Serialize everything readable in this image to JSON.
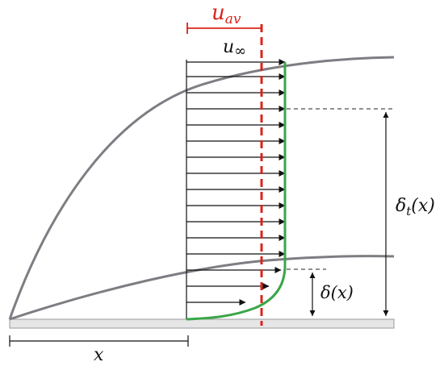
{
  "labels": {
    "u_av": "u",
    "u_av_sub": "av",
    "u_inf": "u",
    "u_inf_sub": "∞",
    "delta_t": "δ",
    "delta_t_sub": "t",
    "delta_t_arg": "(x)",
    "delta": "δ(x)",
    "x": "x"
  },
  "colors": {
    "curve": "#7d7d83",
    "profile": "#3aa648",
    "average": "#d9241c",
    "arrow": "#111111",
    "plate": "#e6e6e6"
  }
}
